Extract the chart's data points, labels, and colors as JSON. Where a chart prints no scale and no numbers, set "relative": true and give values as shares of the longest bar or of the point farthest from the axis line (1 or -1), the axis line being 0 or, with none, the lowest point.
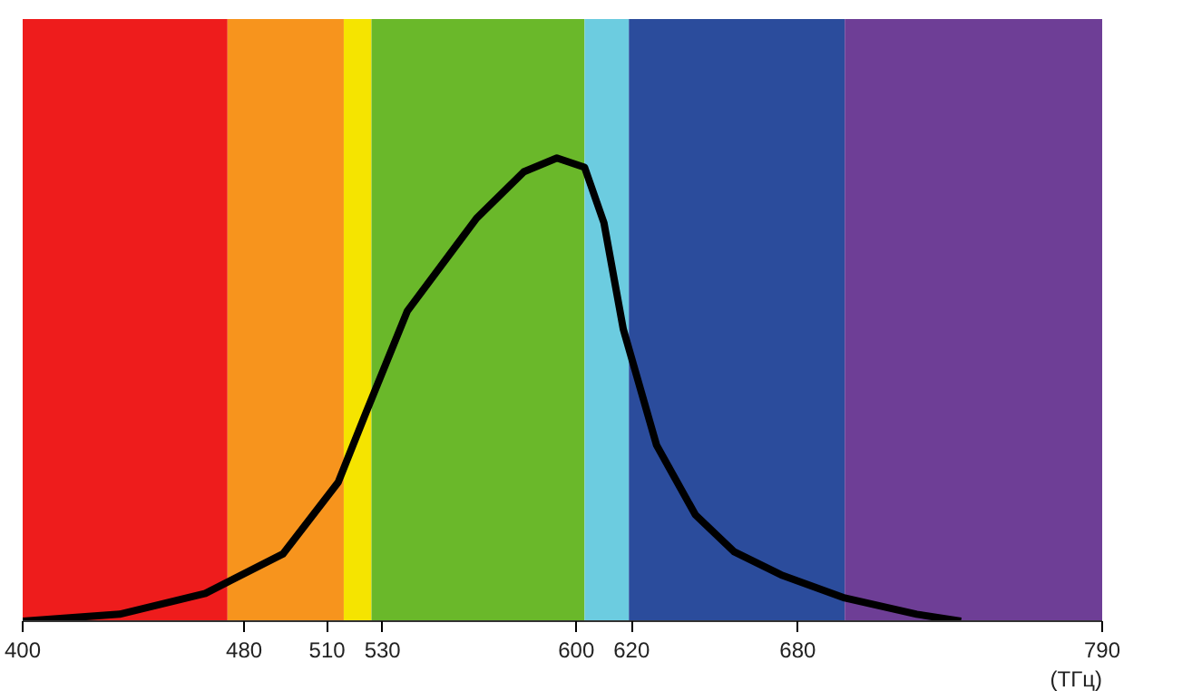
{
  "chart_data": {
    "type": "line",
    "relative": true,
    "xlabel": "(ТГц)",
    "xlim": [
      400,
      790
    ],
    "xticks": [
      400,
      480,
      510,
      530,
      600,
      620,
      680,
      790
    ],
    "grid": false,
    "marker": "none",
    "line_style": "solid",
    "x": [
      400,
      435,
      466,
      494,
      514,
      524,
      539,
      564,
      581,
      593,
      603,
      610,
      617,
      629,
      643,
      657,
      674,
      697,
      723,
      739
    ],
    "series": [
      {
        "color": "#000000",
        "values": [
          0,
          0.015,
          0.06,
          0.145,
          0.3,
          0.45,
          0.67,
          0.87,
          0.97,
          1,
          0.98,
          0.86,
          0.63,
          0.38,
          0.23,
          0.15,
          0.1,
          0.05,
          0.015,
          0
        ]
      }
    ],
    "bands": [
      {
        "axis": "x",
        "from": 400,
        "to": 474,
        "color": "#ee1c1c"
      },
      {
        "axis": "x",
        "from": 474,
        "to": 516,
        "color": "#f7941d"
      },
      {
        "axis": "x",
        "from": 516,
        "to": 526,
        "color": "#f5e400"
      },
      {
        "axis": "x",
        "from": 526,
        "to": 603,
        "color": "#6ab82a"
      },
      {
        "axis": "x",
        "from": 603,
        "to": 619,
        "color": "#6ccce0"
      },
      {
        "axis": "x",
        "from": 619,
        "to": 697,
        "color": "#2b4c9c"
      },
      {
        "axis": "x",
        "from": 697,
        "to": 790,
        "color": "#6e3e96"
      }
    ]
  }
}
